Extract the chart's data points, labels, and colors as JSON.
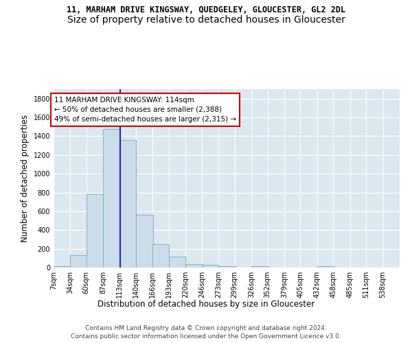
{
  "title": "11, MARHAM DRIVE KINGSWAY, QUEDGELEY, GLOUCESTER, GL2 2DL",
  "subtitle": "Size of property relative to detached houses in Gloucester",
  "xlabel": "Distribution of detached houses by size in Gloucester",
  "ylabel": "Number of detached properties",
  "bar_color": "#ccdce8",
  "bar_edge_color": "#7aaabb",
  "background_color": "#dce8f0",
  "grid_color": "#ffffff",
  "property_line_color": "#2222bb",
  "property_size": 114,
  "annotation_line1": "11 MARHAM DRIVE KINGSWAY: 114sqm",
  "annotation_line2": "← 50% of detached houses are smaller (2,388)",
  "annotation_line3": "49% of semi-detached houses are larger (2,315) →",
  "annotation_box_color": "#ffffff",
  "annotation_box_edge_color": "#cc0000",
  "categories": [
    "7sqm",
    "34sqm",
    "60sqm",
    "87sqm",
    "113sqm",
    "140sqm",
    "166sqm",
    "193sqm",
    "220sqm",
    "246sqm",
    "273sqm",
    "299sqm",
    "326sqm",
    "352sqm",
    "379sqm",
    "405sqm",
    "432sqm",
    "458sqm",
    "485sqm",
    "511sqm",
    "538sqm"
  ],
  "bin_edges": [
    7,
    34,
    60,
    87,
    113,
    140,
    166,
    193,
    220,
    246,
    273,
    299,
    326,
    352,
    379,
    405,
    432,
    458,
    485,
    511,
    538
  ],
  "values": [
    15,
    135,
    785,
    1475,
    1360,
    565,
    248,
    115,
    35,
    28,
    15,
    0,
    18,
    0,
    0,
    0,
    18,
    0,
    0,
    0,
    0
  ],
  "ylim": [
    0,
    1900
  ],
  "yticks": [
    0,
    200,
    400,
    600,
    800,
    1000,
    1200,
    1400,
    1600,
    1800
  ],
  "footer_line1": "Contains HM Land Registry data © Crown copyright and database right 2024.",
  "footer_line2": "Contains public sector information licensed under the Open Government Licence v3.0.",
  "title_fontsize": 8.5,
  "subtitle_fontsize": 10,
  "axis_label_fontsize": 8.5,
  "tick_fontsize": 7,
  "footer_fontsize": 6.5
}
